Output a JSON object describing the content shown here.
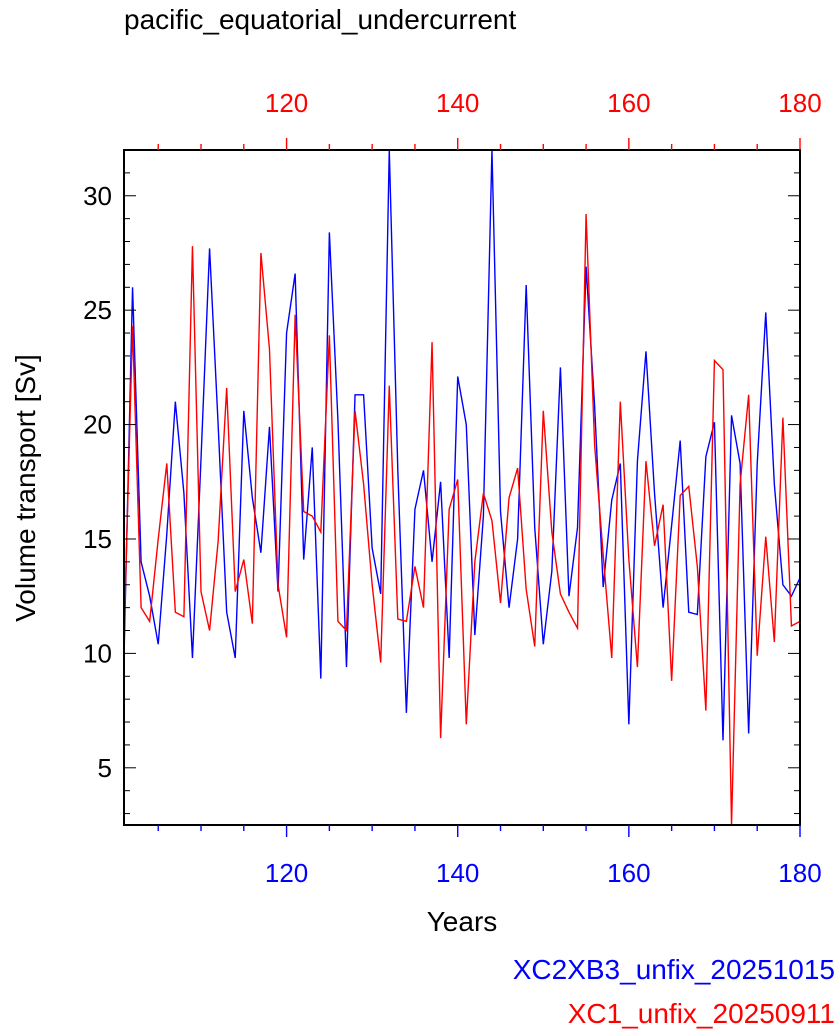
{
  "chart_data": {
    "type": "line",
    "title": "pacific_equatorial_undercurrent",
    "xlabel": "Years",
    "ylabel": "Volume transport [Sv]",
    "xlim": [
      101,
      180
    ],
    "ylim": [
      2.5,
      32
    ],
    "x_ticks": [
      120,
      140,
      160,
      180
    ],
    "y_ticks": [
      5,
      10,
      15,
      20,
      25,
      30
    ],
    "x_top_color": "#ff0000",
    "x_bottom_color": "#0000ff",
    "x_start": 101,
    "series": [
      {
        "name": "XC2XB3_unfix_20251015",
        "color": "#0000ff",
        "values": [
          9.8,
          26.0,
          14.0,
          12.5,
          10.4,
          15.2,
          21.0,
          17.0,
          9.8,
          18.5,
          27.7,
          20.0,
          11.8,
          9.8,
          20.6,
          16.8,
          14.4,
          19.9,
          12.7,
          24.0,
          26.6,
          14.1,
          19.0,
          8.9,
          28.4,
          20.2,
          9.4,
          21.3,
          21.3,
          14.6,
          12.6,
          32.0,
          18.0,
          7.4,
          16.3,
          18.0,
          14.0,
          17.5,
          9.8,
          22.1,
          20.0,
          10.8,
          16.0,
          32.0,
          16.2,
          12.0,
          15.0,
          26.1,
          15.5,
          10.4,
          13.6,
          22.5,
          12.5,
          15.5,
          26.9,
          20.8,
          12.9,
          16.7,
          18.3,
          6.9,
          18.4,
          23.2,
          17.0,
          12.0,
          15.6,
          19.3,
          11.8,
          11.7,
          18.6,
          20.1,
          6.2,
          20.4,
          18.3,
          6.5,
          18.3,
          24.9,
          17.4,
          13.0,
          12.5,
          13.3
        ]
      },
      {
        "name": "XC1_unfix_20250911",
        "color": "#ff0000",
        "values": [
          10.6,
          24.3,
          12.0,
          11.4,
          15.0,
          18.3,
          11.8,
          11.6,
          27.8,
          12.7,
          11.0,
          14.9,
          21.6,
          12.7,
          14.1,
          11.3,
          27.5,
          23.3,
          13.0,
          10.7,
          24.8,
          16.2,
          16.0,
          15.3,
          23.9,
          11.4,
          11.0,
          20.6,
          17.4,
          13.0,
          9.6,
          21.7,
          11.5,
          11.4,
          13.8,
          12.0,
          23.6,
          6.3,
          16.3,
          17.6,
          6.9,
          14.0,
          17.0,
          15.8,
          12.2,
          16.8,
          18.1,
          12.8,
          10.3,
          20.6,
          15.3,
          12.6,
          11.8,
          11.1,
          29.2,
          19.1,
          14.3,
          9.8,
          21.0,
          14.1,
          9.4,
          18.4,
          14.7,
          16.5,
          8.8,
          16.9,
          17.3,
          13.8,
          7.5,
          22.8,
          22.4,
          2.5,
          17.4,
          21.3,
          9.9,
          15.1,
          10.5,
          20.3,
          11.2,
          11.4
        ]
      }
    ]
  }
}
